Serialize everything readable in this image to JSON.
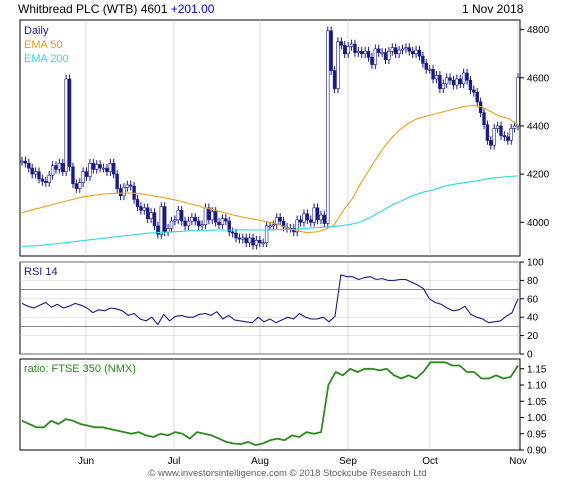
{
  "header": {
    "title": "Whitbread PLC (WTB) 4601",
    "change": "+201.00",
    "date": "1 Nov 2018"
  },
  "footer": {
    "text": "© www.investorsintelligence.com © 2018 Stockcube Research Ltd"
  },
  "colors": {
    "price": "#1a1a80",
    "ema50": "#e8a020",
    "ema200": "#30d8e0",
    "rsi": "#1a1a80",
    "ratio": "#2a8a1a",
    "panel_bg": "#ffffff",
    "grid": "#c0c0c0"
  },
  "chart_data": [
    {
      "type": "line",
      "name": "price",
      "interval_label": "Daily",
      "ylim": [
        3860,
        4840
      ],
      "yticks": [
        4000,
        4200,
        4400,
        4600,
        4800
      ],
      "x_month_labels": [
        "Jun",
        "Jul",
        "Aug",
        "Sep",
        "Oct",
        "Nov"
      ],
      "series": [
        {
          "name": "Price",
          "values": [
            4254,
            4245,
            4225,
            4200,
            4210,
            4180,
            4170,
            4165,
            4195,
            4235,
            4220,
            4245,
            4210,
            4595,
            4230,
            4160,
            4140,
            4165,
            4210,
            4190,
            4245,
            4220,
            4240,
            4225,
            4225,
            4210,
            4245,
            4200,
            4140,
            4110,
            4145,
            4155,
            4150,
            4095,
            4065,
            4050,
            4060,
            4015,
            4040,
            3985,
            3950,
            4065,
            3960,
            3975,
            4005,
            4010,
            4050,
            4005,
            3985,
            4005,
            4020,
            4005,
            3985,
            3990,
            4060,
            4010,
            4045,
            4000,
            3990,
            4015,
            4005,
            3960,
            3955,
            3935,
            3930,
            3935,
            3915,
            3935,
            3905,
            3925,
            3915,
            3915,
            3985,
            3985,
            3990,
            4020,
            4005,
            3980,
            3975,
            3975,
            3960,
            4010,
            4000,
            4035,
            4010,
            4000,
            4060,
            4010,
            4030,
            3995,
            4795,
            4630,
            4555,
            4750,
            4735,
            4700,
            4730,
            4740,
            4705,
            4710,
            4700,
            4710,
            4685,
            4655,
            4720,
            4705,
            4705,
            4675,
            4710,
            4725,
            4700,
            4715,
            4720,
            4725,
            4710,
            4700,
            4715,
            4690,
            4660,
            4635,
            4635,
            4595,
            4610,
            4555,
            4575,
            4600,
            4590,
            4570,
            4595,
            4575,
            4620,
            4590,
            4550,
            4540,
            4500,
            4455,
            4405,
            4340,
            4320,
            4390,
            4400,
            4360,
            4355,
            4340,
            4390,
            4400,
            4601
          ]
        },
        {
          "name": "EMA 50",
          "values": [
            4040,
            4050,
            4060,
            4070,
            4080,
            4090,
            4100,
            4108,
            4113,
            4118,
            4120,
            4121,
            4121,
            4118,
            4112,
            4105,
            4098,
            4090,
            4080,
            4070,
            4060,
            4050,
            4040,
            4030,
            4022,
            4015,
            4007,
            4000,
            3990,
            3975,
            3964,
            3957,
            3960,
            3970,
            3990,
            4050,
            4100,
            4170,
            4230,
            4290,
            4340,
            4380,
            4410,
            4430,
            4440,
            4450,
            4460,
            4470,
            4480,
            4485,
            4480,
            4460,
            4440,
            4430,
            4405
          ]
        },
        {
          "name": "EMA 200",
          "values": [
            3900,
            3902,
            3905,
            3910,
            3915,
            3920,
            3925,
            3930,
            3935,
            3940,
            3945,
            3950,
            3955,
            3958,
            3960,
            3962,
            3965,
            3966,
            3967,
            3968,
            3968,
            3969,
            3968,
            3968,
            3969,
            3970,
            3972,
            3975,
            3978,
            3981,
            3984,
            3990,
            4000,
            4020,
            4045,
            4070,
            4090,
            4110,
            4125,
            4135,
            4150,
            4158,
            4165,
            4172,
            4180,
            4185,
            4190,
            4192
          ]
        }
      ],
      "legend": [
        "Daily",
        "EMA 50",
        "EMA 200"
      ]
    },
    {
      "type": "line",
      "name": "rsi",
      "label": "RSI 14",
      "ylim": [
        0,
        100
      ],
      "yticks": [
        0,
        20,
        40,
        60,
        80,
        100
      ],
      "reference_lines": [
        30,
        70
      ],
      "series": [
        {
          "name": "RSI 14",
          "values": [
            55,
            52,
            50,
            53,
            56,
            51,
            54,
            50,
            52,
            55,
            53,
            50,
            45,
            48,
            47,
            50,
            49,
            47,
            42,
            44,
            38,
            36,
            40,
            32,
            43,
            36,
            41,
            42,
            40,
            40,
            43,
            44,
            42,
            46,
            38,
            42,
            37,
            36,
            35,
            34,
            40,
            35,
            38,
            34,
            37,
            40,
            38,
            44,
            40,
            38,
            38,
            40,
            35,
            41,
            86,
            84,
            84,
            81,
            83,
            84,
            81,
            82,
            80,
            80,
            81,
            81,
            78,
            75,
            71,
            60,
            56,
            54,
            50,
            47,
            48,
            52,
            43,
            40,
            38,
            34,
            35,
            36,
            41,
            45,
            60
          ]
        }
      ]
    },
    {
      "type": "line",
      "name": "ratio",
      "label": "ratio: FTSE 350 (NMX)",
      "ylim": [
        0.9,
        1.18
      ],
      "yticks": [
        0.9,
        0.95,
        1.0,
        1.05,
        1.1,
        1.15
      ],
      "series": [
        {
          "name": "ratio: FTSE 350 (NMX)",
          "values": [
            0.99,
            0.98,
            0.97,
            0.97,
            0.99,
            0.98,
            0.995,
            0.99,
            0.98,
            0.975,
            0.97,
            0.97,
            0.965,
            0.96,
            0.955,
            0.95,
            0.955,
            0.945,
            0.94,
            0.95,
            0.945,
            0.955,
            0.95,
            0.935,
            0.955,
            0.95,
            0.945,
            0.935,
            0.925,
            0.92,
            0.918,
            0.925,
            0.915,
            0.92,
            0.93,
            0.935,
            0.93,
            0.945,
            0.94,
            0.955,
            0.95,
            0.955,
            1.1,
            1.14,
            1.13,
            1.15,
            1.14,
            1.15,
            1.15,
            1.145,
            1.15,
            1.13,
            1.12,
            1.13,
            1.12,
            1.14,
            1.17,
            1.17,
            1.17,
            1.16,
            1.16,
            1.14,
            1.14,
            1.12,
            1.12,
            1.13,
            1.12,
            1.125,
            1.16
          ]
        }
      ]
    }
  ]
}
